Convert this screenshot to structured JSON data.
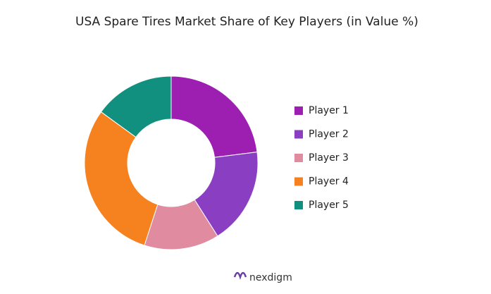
{
  "chart_data": {
    "type": "donut",
    "title": "USA Spare Tires Market Share of Key Players (in Value %)",
    "categories": [
      "Player 1",
      "Player 2",
      "Player 3",
      "Player 4",
      "Player 5"
    ],
    "values": [
      23,
      18,
      14,
      30,
      15
    ],
    "colors": [
      "#9c1fb1",
      "#8a3fc2",
      "#e08ba0",
      "#f5821f",
      "#12907f"
    ],
    "legend": "right"
  },
  "brand": "nexdigm"
}
